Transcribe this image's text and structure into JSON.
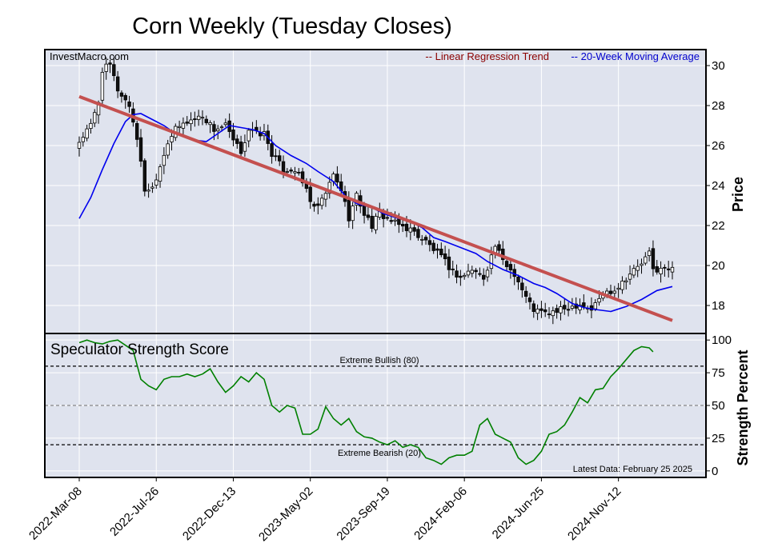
{
  "title": "Corn Weekly (Tuesday Closes)",
  "source": "InvestMacro.com",
  "legend": {
    "regression": "-- Linear Regression Trend",
    "ma": "-- 20-Week Moving Average"
  },
  "colors": {
    "panel_bg": "#dfe3ee",
    "grid": "#ffffff",
    "candle_up_fill": "#ffffff",
    "candle_down_fill": "#111111",
    "regression": "#c4504f",
    "ma": "#0000ee",
    "strength": "#008000",
    "legend_reg": "#8b0000",
    "legend_ma": "#0000cd"
  },
  "chart_data": [
    {
      "type": "candlestick",
      "ylabel": "Price",
      "ylim": [
        16.6,
        30.8
      ],
      "yticks": [
        "18",
        "20",
        "22",
        "24",
        "26",
        "28",
        "30"
      ],
      "x_ticks": [
        "2022-Mar-08",
        "2022-Jul-26",
        "2022-Dec-13",
        "2023-May-02",
        "2023-Sep-19",
        "2024-Feb-06",
        "2024-Jun-25",
        "2024-Nov-12"
      ],
      "x_tick_index": [
        0,
        20,
        40,
        60,
        80,
        100,
        120,
        140
      ],
      "n_weeks": 155,
      "close_anchors": [
        [
          0,
          26.2
        ],
        [
          3,
          27.0
        ],
        [
          5,
          28.2
        ],
        [
          6,
          29.8
        ],
        [
          8,
          30.0
        ],
        [
          10,
          28.8
        ],
        [
          13,
          28.0
        ],
        [
          15,
          26.4
        ],
        [
          17,
          23.8
        ],
        [
          19,
          23.9
        ],
        [
          21,
          25.0
        ],
        [
          23,
          26.2
        ],
        [
          25,
          26.8
        ],
        [
          28,
          27.2
        ],
        [
          32,
          27.5
        ],
        [
          35,
          26.8
        ],
        [
          38,
          27.0
        ],
        [
          40,
          26.2
        ],
        [
          42,
          25.7
        ],
        [
          44,
          26.8
        ],
        [
          46,
          26.6
        ],
        [
          48,
          26.6
        ],
        [
          50,
          25.6
        ],
        [
          53,
          24.8
        ],
        [
          56,
          24.8
        ],
        [
          59,
          23.8
        ],
        [
          61,
          22.8
        ],
        [
          63,
          23.2
        ],
        [
          66,
          24.5
        ],
        [
          68,
          23.8
        ],
        [
          70,
          22.4
        ],
        [
          72,
          23.5
        ],
        [
          74,
          22.6
        ],
        [
          76,
          22.0
        ],
        [
          78,
          22.6
        ],
        [
          82,
          22.1
        ],
        [
          86,
          21.8
        ],
        [
          90,
          21.2
        ],
        [
          94,
          20.4
        ],
        [
          97,
          19.7
        ],
        [
          99,
          19.4
        ],
        [
          102,
          19.8
        ],
        [
          105,
          19.4
        ],
        [
          108,
          21.0
        ],
        [
          110,
          20.2
        ],
        [
          113,
          19.6
        ],
        [
          116,
          18.4
        ],
        [
          118,
          17.8
        ],
        [
          121,
          17.6
        ],
        [
          124,
          17.7
        ],
        [
          127,
          17.9
        ],
        [
          130,
          18.1
        ],
        [
          133,
          17.8
        ],
        [
          136,
          18.6
        ],
        [
          139,
          18.8
        ],
        [
          143,
          19.6
        ],
        [
          146,
          20.1
        ],
        [
          148,
          20.6
        ],
        [
          149,
          19.8
        ],
        [
          154,
          19.8
        ]
      ],
      "regression_endpoints": {
        "x": [
          0,
          154
        ],
        "y": [
          28.45,
          17.25
        ]
      },
      "moving_average": [
        [
          0,
          22.35
        ],
        [
          3,
          23.4
        ],
        [
          6,
          24.8
        ],
        [
          9,
          26.1
        ],
        [
          12,
          27.2
        ],
        [
          14,
          27.55
        ],
        [
          16,
          27.6
        ],
        [
          19,
          27.3
        ],
        [
          22,
          27.0
        ],
        [
          25,
          26.6
        ],
        [
          29,
          26.3
        ],
        [
          33,
          26.2
        ],
        [
          36,
          26.6
        ],
        [
          39,
          27.0
        ],
        [
          42,
          26.9
        ],
        [
          45,
          26.8
        ],
        [
          48,
          26.6
        ],
        [
          51,
          26.0
        ],
        [
          55,
          25.5
        ],
        [
          59,
          25.1
        ],
        [
          62,
          24.7
        ],
        [
          66,
          24.2
        ],
        [
          69,
          23.5
        ],
        [
          72,
          23.1
        ],
        [
          76,
          22.9
        ],
        [
          79,
          22.6
        ],
        [
          82,
          22.4
        ],
        [
          86,
          22.2
        ],
        [
          89,
          21.9
        ],
        [
          92,
          21.4
        ],
        [
          95,
          21.2
        ],
        [
          99,
          20.9
        ],
        [
          103,
          20.6
        ],
        [
          106,
          20.2
        ],
        [
          110,
          19.8
        ],
        [
          114,
          19.5
        ],
        [
          118,
          19.1
        ],
        [
          121,
          18.9
        ],
        [
          124,
          18.6
        ],
        [
          128,
          18.1
        ],
        [
          131,
          17.9
        ],
        [
          134,
          17.8
        ],
        [
          138,
          17.7
        ],
        [
          142,
          17.95
        ],
        [
          146,
          18.3
        ],
        [
          150,
          18.75
        ],
        [
          154,
          18.95
        ]
      ]
    },
    {
      "type": "line",
      "title": "Speculator Strength Score",
      "ylabel": "Strength Percent",
      "ylim": [
        -5,
        105
      ],
      "yticks": [
        "0",
        "25",
        "50",
        "75",
        "100"
      ],
      "reference_lines": [
        {
          "value": 80,
          "label": "Extreme Bullish (80)",
          "style": "dashed",
          "color": "#000000"
        },
        {
          "value": 50,
          "label": "",
          "style": "dashed",
          "color": "#888888"
        },
        {
          "value": 20,
          "label": "Extreme Bearish (20)",
          "style": "dashed",
          "color": "#000000"
        }
      ],
      "annotation": "Latest Data: February 25 2025",
      "values_anchors": [
        [
          0,
          98
        ],
        [
          2,
          100
        ],
        [
          4,
          98
        ],
        [
          6,
          97
        ],
        [
          8,
          99
        ],
        [
          10,
          100
        ],
        [
          12,
          96
        ],
        [
          14,
          92
        ],
        [
          16,
          70
        ],
        [
          18,
          65
        ],
        [
          20,
          62
        ],
        [
          22,
          70
        ],
        [
          24,
          72
        ],
        [
          26,
          72
        ],
        [
          28,
          74
        ],
        [
          30,
          72
        ],
        [
          32,
          74
        ],
        [
          34,
          78
        ],
        [
          36,
          68
        ],
        [
          38,
          60
        ],
        [
          40,
          65
        ],
        [
          42,
          72
        ],
        [
          44,
          68
        ],
        [
          46,
          75
        ],
        [
          48,
          70
        ],
        [
          50,
          50
        ],
        [
          52,
          45
        ],
        [
          54,
          50
        ],
        [
          56,
          48
        ],
        [
          58,
          28
        ],
        [
          60,
          28
        ],
        [
          62,
          32
        ],
        [
          64,
          49
        ],
        [
          66,
          40
        ],
        [
          68,
          35
        ],
        [
          70,
          40
        ],
        [
          72,
          30
        ],
        [
          74,
          26
        ],
        [
          76,
          25
        ],
        [
          78,
          22
        ],
        [
          80,
          20
        ],
        [
          82,
          23
        ],
        [
          84,
          18
        ],
        [
          86,
          20
        ],
        [
          88,
          18
        ],
        [
          90,
          10
        ],
        [
          92,
          8
        ],
        [
          94,
          5
        ],
        [
          96,
          10
        ],
        [
          98,
          12
        ],
        [
          100,
          12
        ],
        [
          102,
          15
        ],
        [
          104,
          35
        ],
        [
          106,
          40
        ],
        [
          108,
          28
        ],
        [
          110,
          25
        ],
        [
          112,
          22
        ],
        [
          114,
          10
        ],
        [
          116,
          5
        ],
        [
          118,
          8
        ],
        [
          120,
          15
        ],
        [
          122,
          28
        ],
        [
          124,
          30
        ],
        [
          126,
          35
        ],
        [
          128,
          45
        ],
        [
          130,
          56
        ],
        [
          132,
          52
        ],
        [
          134,
          62
        ],
        [
          136,
          63
        ],
        [
          138,
          72
        ],
        [
          140,
          78
        ],
        [
          142,
          85
        ],
        [
          144,
          92
        ],
        [
          146,
          95
        ],
        [
          148,
          94
        ],
        [
          149,
          91
        ]
      ]
    }
  ]
}
